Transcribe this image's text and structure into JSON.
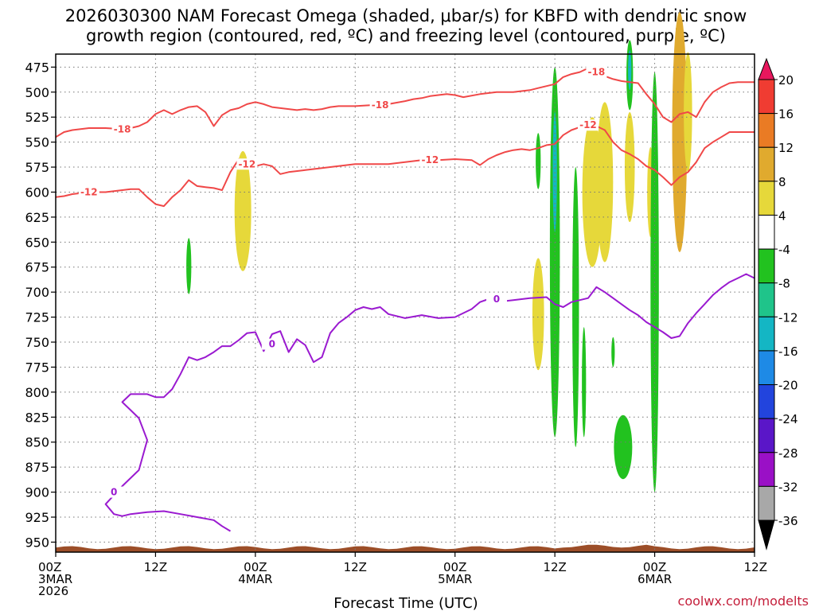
{
  "chart_data": {
    "type": "heatmap",
    "title_line1": "2026030300 NAM Forecast Omega (shaded, μbar/s) for KBFD with dendritic snow",
    "title_line2": "growth region (contoured, red, ºC) and freezing level (contoured, purple, ºC)",
    "xlabel": "Forecast Time (UTC)",
    "credit": "coolwx.com/modelts",
    "x_hours_range": [
      0,
      84
    ],
    "y_pressure_range": [
      462,
      960
    ],
    "y_ticks": [
      475,
      500,
      525,
      550,
      575,
      600,
      625,
      650,
      675,
      700,
      725,
      750,
      775,
      800,
      825,
      850,
      875,
      900,
      925,
      950
    ],
    "x_ticks": [
      {
        "hour": 0,
        "line1": "00Z",
        "line2": "3MAR",
        "line3": "2026"
      },
      {
        "hour": 12,
        "line1": "12Z",
        "line2": "",
        "line3": ""
      },
      {
        "hour": 24,
        "line1": "00Z",
        "line2": "4MAR",
        "line3": ""
      },
      {
        "hour": 36,
        "line1": "12Z",
        "line2": "",
        "line3": ""
      },
      {
        "hour": 48,
        "line1": "00Z",
        "line2": "5MAR",
        "line3": ""
      },
      {
        "hour": 60,
        "line1": "12Z",
        "line2": "",
        "line3": ""
      },
      {
        "hour": 72,
        "line1": "00Z",
        "line2": "6MAR",
        "line3": ""
      },
      {
        "hour": 84,
        "line1": "12Z",
        "line2": "",
        "line3": ""
      }
    ],
    "grid": true,
    "colorbar": {
      "labels": [
        "20",
        "16",
        "12",
        "8",
        "4",
        "-4",
        "-8",
        "-12",
        "-16",
        "-20",
        "-24",
        "-28",
        "-32",
        "-36"
      ],
      "colors": [
        "#e8175d",
        "#f03c32",
        "#ea7b24",
        "#e0aa2e",
        "#e6d83a",
        "#ffffff",
        "#22c21f",
        "#1fc48a",
        "#14b6c4",
        "#1e8ae6",
        "#2244dd",
        "#5a16c8",
        "#9a10c6",
        "#a8a8a8",
        "#000000"
      ]
    },
    "series": [
      {
        "name": "-18",
        "color": "#f04848",
        "label": "-18",
        "points": [
          [
            0,
            545
          ],
          [
            1,
            540
          ],
          [
            2,
            538
          ],
          [
            4,
            536
          ],
          [
            6,
            536
          ],
          [
            8,
            537
          ],
          [
            9,
            536
          ],
          [
            10,
            534
          ],
          [
            11,
            530
          ],
          [
            12,
            522
          ],
          [
            13,
            518
          ],
          [
            14,
            522
          ],
          [
            15,
            518
          ],
          [
            16,
            515
          ],
          [
            17,
            514
          ],
          [
            18,
            520
          ],
          [
            19,
            534
          ],
          [
            20,
            523
          ],
          [
            21,
            518
          ],
          [
            22,
            516
          ],
          [
            23,
            512
          ],
          [
            24,
            510
          ],
          [
            25,
            512
          ],
          [
            26,
            515
          ],
          [
            28,
            517
          ],
          [
            29,
            518
          ],
          [
            30,
            517
          ],
          [
            31,
            518
          ],
          [
            32,
            517
          ],
          [
            33,
            515
          ],
          [
            34,
            514
          ],
          [
            36,
            514
          ],
          [
            38,
            513
          ],
          [
            39,
            513
          ],
          [
            40,
            512
          ],
          [
            42,
            509
          ],
          [
            43,
            507
          ],
          [
            44,
            506
          ],
          [
            45,
            504
          ],
          [
            46,
            503
          ],
          [
            47,
            502
          ],
          [
            48,
            503
          ],
          [
            49,
            505
          ],
          [
            51,
            502
          ],
          [
            53,
            500
          ],
          [
            55,
            500
          ],
          [
            56,
            499
          ],
          [
            57,
            498
          ],
          [
            58,
            496
          ],
          [
            59,
            494
          ],
          [
            60,
            492
          ],
          [
            61,
            485
          ],
          [
            62,
            482
          ],
          [
            63,
            480
          ],
          [
            64,
            476
          ],
          [
            65,
            480
          ],
          [
            66,
            484
          ],
          [
            67,
            487
          ],
          [
            68,
            489
          ],
          [
            69,
            490
          ],
          [
            70,
            491
          ],
          [
            71,
            502
          ],
          [
            72,
            512
          ],
          [
            73,
            525
          ],
          [
            74,
            530
          ],
          [
            75,
            522
          ],
          [
            76,
            520
          ],
          [
            77,
            525
          ],
          [
            78,
            510
          ],
          [
            79,
            500
          ],
          [
            80,
            495
          ],
          [
            81,
            491
          ],
          [
            82,
            490
          ],
          [
            84,
            490
          ]
        ],
        "label_pos": [
          [
            8,
            537
          ],
          [
            39,
            513
          ],
          [
            65,
            480
          ]
        ]
      },
      {
        "name": "-12",
        "color": "#f04848",
        "label": "-12",
        "points": [
          [
            0,
            605
          ],
          [
            1,
            604
          ],
          [
            2,
            602
          ],
          [
            4,
            600
          ],
          [
            6,
            600
          ],
          [
            8,
            598
          ],
          [
            9,
            597
          ],
          [
            10,
            597
          ],
          [
            11,
            605
          ],
          [
            12,
            612
          ],
          [
            13,
            614
          ],
          [
            14,
            605
          ],
          [
            15,
            598
          ],
          [
            16,
            588
          ],
          [
            17,
            594
          ],
          [
            18,
            595
          ],
          [
            19,
            596
          ],
          [
            20,
            598
          ],
          [
            21,
            580
          ],
          [
            22,
            567
          ],
          [
            23,
            572
          ],
          [
            24,
            574
          ],
          [
            25,
            572
          ],
          [
            26,
            574
          ],
          [
            27,
            582
          ],
          [
            28,
            580
          ],
          [
            30,
            578
          ],
          [
            32,
            576
          ],
          [
            34,
            574
          ],
          [
            36,
            572
          ],
          [
            38,
            572
          ],
          [
            40,
            572
          ],
          [
            42,
            570
          ],
          [
            44,
            568
          ],
          [
            46,
            568
          ],
          [
            48,
            567
          ],
          [
            50,
            568
          ],
          [
            51,
            573
          ],
          [
            52,
            567
          ],
          [
            53,
            563
          ],
          [
            54,
            560
          ],
          [
            55,
            558
          ],
          [
            56,
            557
          ],
          [
            57,
            558
          ],
          [
            58,
            556
          ],
          [
            59,
            553
          ],
          [
            60,
            552
          ],
          [
            61,
            543
          ],
          [
            62,
            538
          ],
          [
            63,
            535
          ],
          [
            64,
            533
          ],
          [
            65,
            534
          ],
          [
            66,
            538
          ],
          [
            67,
            550
          ],
          [
            68,
            558
          ],
          [
            69,
            562
          ],
          [
            70,
            567
          ],
          [
            71,
            574
          ],
          [
            72,
            578
          ],
          [
            73,
            585
          ],
          [
            74,
            593
          ],
          [
            75,
            585
          ],
          [
            76,
            580
          ],
          [
            77,
            570
          ],
          [
            78,
            556
          ],
          [
            79,
            550
          ],
          [
            80,
            545
          ],
          [
            81,
            540
          ],
          [
            82,
            540
          ],
          [
            84,
            540
          ]
        ],
        "label_pos": [
          [
            4,
            600
          ],
          [
            23,
            572
          ],
          [
            45,
            568
          ],
          [
            64,
            533
          ]
        ]
      },
      {
        "name": "0",
        "color": "#9a1ad0",
        "label": "0",
        "points": [
          [
            21,
            939
          ],
          [
            20,
            934
          ],
          [
            19,
            928
          ],
          [
            17,
            925
          ],
          [
            15,
            922
          ],
          [
            13,
            919
          ],
          [
            11,
            920
          ],
          [
            9,
            922
          ],
          [
            8,
            924
          ],
          [
            7,
            922
          ],
          [
            6,
            912
          ],
          [
            8,
            894
          ],
          [
            10,
            878
          ],
          [
            11,
            848
          ],
          [
            10,
            826
          ],
          [
            9,
            818
          ],
          [
            8,
            810
          ],
          [
            9,
            802
          ],
          [
            11,
            802
          ],
          [
            12,
            805
          ],
          [
            13,
            805
          ],
          [
            14,
            797
          ],
          [
            15,
            782
          ],
          [
            16,
            765
          ],
          [
            17,
            768
          ],
          [
            18,
            765
          ],
          [
            19,
            760
          ],
          [
            20,
            754
          ],
          [
            21,
            754
          ],
          [
            22,
            748
          ],
          [
            23,
            741
          ],
          [
            24,
            740
          ],
          [
            25,
            759
          ],
          [
            26,
            742
          ],
          [
            27,
            739
          ],
          [
            28,
            760
          ],
          [
            29,
            747
          ],
          [
            30,
            753
          ],
          [
            31,
            770
          ],
          [
            32,
            765
          ],
          [
            33,
            741
          ],
          [
            34,
            731
          ],
          [
            35,
            725
          ],
          [
            36,
            718
          ],
          [
            37,
            715
          ],
          [
            38,
            717
          ],
          [
            39,
            715
          ],
          [
            40,
            722
          ],
          [
            42,
            726
          ],
          [
            44,
            723
          ],
          [
            46,
            726
          ],
          [
            48,
            725
          ],
          [
            50,
            717
          ],
          [
            51,
            710
          ],
          [
            52,
            707
          ],
          [
            53,
            710
          ],
          [
            55,
            708
          ],
          [
            57,
            706
          ],
          [
            59,
            705
          ],
          [
            60,
            712
          ],
          [
            61,
            715
          ],
          [
            62,
            710
          ],
          [
            63,
            708
          ],
          [
            64,
            706
          ],
          [
            65,
            695
          ],
          [
            66,
            700
          ],
          [
            67,
            706
          ],
          [
            68,
            712
          ],
          [
            69,
            718
          ],
          [
            70,
            723
          ],
          [
            71,
            730
          ],
          [
            72,
            735
          ],
          [
            73,
            740
          ],
          [
            74,
            746
          ],
          [
            75,
            744
          ],
          [
            76,
            731
          ],
          [
            77,
            721
          ],
          [
            78,
            712
          ],
          [
            79,
            703
          ],
          [
            80,
            696
          ],
          [
            81,
            690
          ],
          [
            82,
            686
          ],
          [
            83,
            682
          ],
          [
            84,
            686
          ]
        ],
        "label_pos": [
          [
            26,
            752
          ],
          [
            53,
            707
          ],
          [
            7,
            900
          ]
        ]
      }
    ],
    "omega_regions": [
      {
        "value": 6,
        "center": [
          22.5,
          619
        ],
        "hw": 1.0,
        "hh": 60
      },
      {
        "value": -6,
        "center": [
          16,
          674
        ],
        "hw": 0.3,
        "hh": 28
      },
      {
        "value": 6,
        "center": [
          58,
          722
        ],
        "hw": 0.7,
        "hh": 56
      },
      {
        "value": -6,
        "center": [
          58,
          569
        ],
        "hw": 0.3,
        "hh": 28
      },
      {
        "value": -6,
        "center": [
          60,
          660
        ],
        "hw": 0.6,
        "hh": 185
      },
      {
        "value": -14,
        "center": [
          60,
          580
        ],
        "hw": 0.25,
        "hh": 60
      },
      {
        "value": -6,
        "center": [
          62.5,
          715
        ],
        "hw": 0.4,
        "hh": 140
      },
      {
        "value": -6,
        "center": [
          63.5,
          790
        ],
        "hw": 0.25,
        "hh": 55
      },
      {
        "value": 6,
        "center": [
          64.5,
          600
        ],
        "hw": 1.2,
        "hh": 75
      },
      {
        "value": 6,
        "center": [
          66,
          590
        ],
        "hw": 1.0,
        "hh": 80
      },
      {
        "value": 6,
        "center": [
          69,
          575
        ],
        "hw": 0.6,
        "hh": 55
      },
      {
        "value": 6,
        "center": [
          71.5,
          600
        ],
        "hw": 0.4,
        "hh": 45
      },
      {
        "value": -6,
        "center": [
          69,
          483
        ],
        "hw": 0.4,
        "hh": 35
      },
      {
        "value": -12,
        "center": [
          69,
          478
        ],
        "hw": 0.2,
        "hh": 20
      },
      {
        "value": -6,
        "center": [
          67,
          760
        ],
        "hw": 0.2,
        "hh": 15
      },
      {
        "value": -6,
        "center": [
          68.2,
          855
        ],
        "hw": 1.1,
        "hh": 32
      },
      {
        "value": -6,
        "center": [
          72,
          690
        ],
        "hw": 0.5,
        "hh": 210
      },
      {
        "value": 8,
        "center": [
          75,
          540
        ],
        "hw": 0.9,
        "hh": 120
      },
      {
        "value": 6,
        "center": [
          76,
          520
        ],
        "hw": 0.5,
        "hh": 60
      }
    ]
  }
}
